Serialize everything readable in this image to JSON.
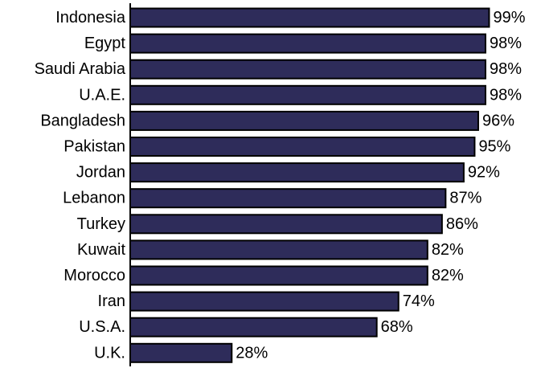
{
  "chart_data": {
    "type": "bar",
    "orientation": "horizontal",
    "categories": [
      "Indonesia",
      "Egypt",
      "Saudi Arabia",
      "U.A.E.",
      "Bangladesh",
      "Pakistan",
      "Jordan",
      "Lebanon",
      "Turkey",
      "Kuwait",
      "Morocco",
      "Iran",
      "U.S.A.",
      "U.K."
    ],
    "values": [
      99,
      98,
      98,
      98,
      96,
      95,
      92,
      87,
      86,
      82,
      82,
      74,
      68,
      28
    ],
    "value_labels": [
      "99%",
      "98%",
      "98%",
      "98%",
      "96%",
      "95%",
      "92%",
      "87%",
      "86%",
      "82%",
      "82%",
      "74%",
      "68%",
      "28%"
    ],
    "title": "",
    "xlabel": "",
    "ylabel": "",
    "xlim": [
      0,
      100
    ],
    "grid": false,
    "legend": "none",
    "bar_color": "#2e2c5a",
    "bar_outline_color": "#000000"
  }
}
